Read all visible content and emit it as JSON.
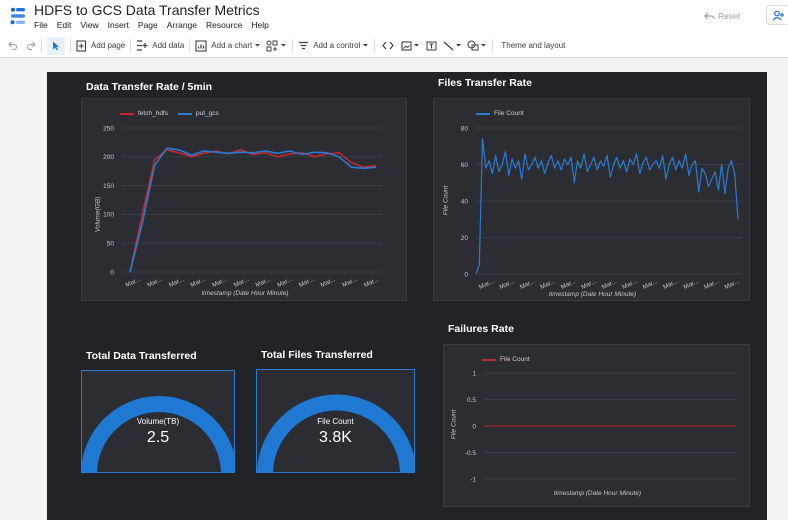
{
  "app": {
    "title": "HDFS to GCS Data Transfer Metrics"
  },
  "menu": [
    "File",
    "Edit",
    "View",
    "Insert",
    "Page",
    "Arrange",
    "Resource",
    "Help"
  ],
  "header": {
    "reset_label": "Reset"
  },
  "toolbar": {
    "add_page": "Add page",
    "add_data": "Add data",
    "add_chart": "Add a chart",
    "add_control": "Add a control",
    "theme_layout": "Theme and layout"
  },
  "colors": {
    "accent": "#1a73e8",
    "report_bg": "#222327",
    "panel_bg": "#2b2d33",
    "fetch": "#c2272d",
    "put": "#2a7bd4"
  },
  "rate_chart": {
    "title": "Data Transfer Rate / 5min",
    "xlabel": "timestamp (Date Hour Minute)",
    "ylabel": "Volume(GB)",
    "chart_data": {
      "type": "line",
      "title": "Data Transfer Rate / 5min",
      "xlabel": "timestamp (Date Hour Minute)",
      "ylabel": "Volume(GB)",
      "ylim": [
        0,
        250
      ],
      "yticks": [
        0,
        50,
        100,
        150,
        200,
        250
      ],
      "x_tick_label": "Mar...",
      "x_tick_count": 12,
      "series": [
        {
          "name": "fetch_hdfs",
          "color": "#c2272d",
          "values": [
            0,
            100,
            195,
            212,
            207,
            200,
            206,
            210,
            205,
            212,
            204,
            207,
            200,
            205,
            207,
            200,
            205,
            207,
            190,
            182,
            185
          ]
        },
        {
          "name": "put_gcs",
          "color": "#2a7bd4",
          "values": [
            0,
            85,
            185,
            215,
            212,
            203,
            210,
            208,
            206,
            208,
            207,
            210,
            206,
            210,
            204,
            208,
            207,
            200,
            182,
            180,
            182
          ]
        }
      ]
    }
  },
  "files_chart": {
    "title": "Files Transfer Rate",
    "xlabel": "timestamp (Date Hour Minute)",
    "ylabel": "File Count",
    "chart_data": {
      "type": "line",
      "title": "Files Transfer Rate",
      "xlabel": "timestamp (Date Hour Minute)",
      "ylabel": "File Count",
      "ylim": [
        0,
        80
      ],
      "yticks": [
        0,
        20,
        40,
        60,
        80
      ],
      "x_tick_label": "Mar...",
      "x_tick_count": 13,
      "series": [
        {
          "name": "File Count",
          "color": "#2a7bd4",
          "values": [
            0,
            5,
            74,
            58,
            62,
            55,
            65,
            56,
            60,
            67,
            54,
            63,
            58,
            62,
            52,
            66,
            57,
            60,
            64,
            58,
            62,
            55,
            61,
            65,
            58,
            62,
            57,
            63,
            60,
            64,
            50,
            62,
            58,
            66,
            56,
            60,
            64,
            57,
            62,
            59,
            65,
            53,
            60,
            64,
            58,
            62,
            56,
            63,
            60,
            66,
            55,
            61,
            64,
            57,
            60,
            62,
            58,
            65,
            52,
            60,
            64,
            57,
            62,
            58,
            66,
            54,
            60,
            62,
            45,
            58,
            55,
            48,
            52,
            56,
            46,
            60,
            44,
            58,
            62,
            55,
            30
          ]
        }
      ]
    }
  },
  "failures_chart": {
    "title": "Failures Rate",
    "xlabel": "timestamp (Date Hour Minute)",
    "ylabel": "File Count",
    "chart_data": {
      "type": "line",
      "title": "Failures Rate",
      "xlabel": "timestamp (Date Hour Minute)",
      "ylabel": "File Count",
      "ylim": [
        -1,
        1
      ],
      "yticks": [
        -1,
        -0.5,
        0,
        0.5,
        1
      ],
      "series": [
        {
          "name": "File Count",
          "color": "#c2272d",
          "values": [
            0,
            0,
            0,
            0,
            0
          ]
        }
      ]
    }
  },
  "total_data": {
    "title": "Total Data Transferred",
    "label": "Volume(TB)",
    "value": "2.5"
  },
  "total_files": {
    "title": "Total Files Transferred",
    "label": "File Count",
    "value": "3.8K"
  }
}
